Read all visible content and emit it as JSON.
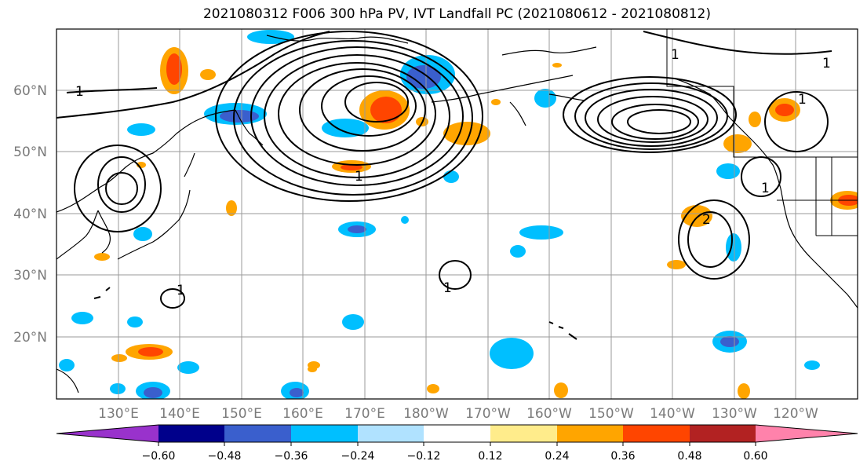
{
  "title": "2021080312 F006 300 hPa PV, IVT Landfall PC (2021080612 - 2021080812)",
  "map": {
    "lat_labels": [
      "60°N",
      "50°N",
      "40°N",
      "30°N",
      "20°N"
    ],
    "lon_labels": [
      "130°E",
      "140°E",
      "150°E",
      "160°E",
      "170°E",
      "180°W",
      "170°W",
      "160°W",
      "150°W",
      "140°W",
      "130°W",
      "120°W"
    ],
    "contour_labels": [
      "1",
      "1",
      "1",
      "1",
      "1",
      "1",
      "2",
      "1",
      "1"
    ],
    "colors": {
      "grid": "#9a9a9a",
      "coast": "#000000",
      "contour": "#000000"
    }
  },
  "colorbar": {
    "tick_labels": [
      "−0.60",
      "−0.48",
      "−0.36",
      "−0.24",
      "−0.12",
      "0.12",
      "0.24",
      "0.36",
      "0.48",
      "0.60"
    ],
    "colors": [
      "#9932cc",
      "#00008b",
      "#3a5fcd",
      "#00bfff",
      "#b0e2ff",
      "#ffffff",
      "#ffec8b",
      "#ffa500",
      "#ff4500",
      "#b22222",
      "#ff82ab"
    ]
  }
}
